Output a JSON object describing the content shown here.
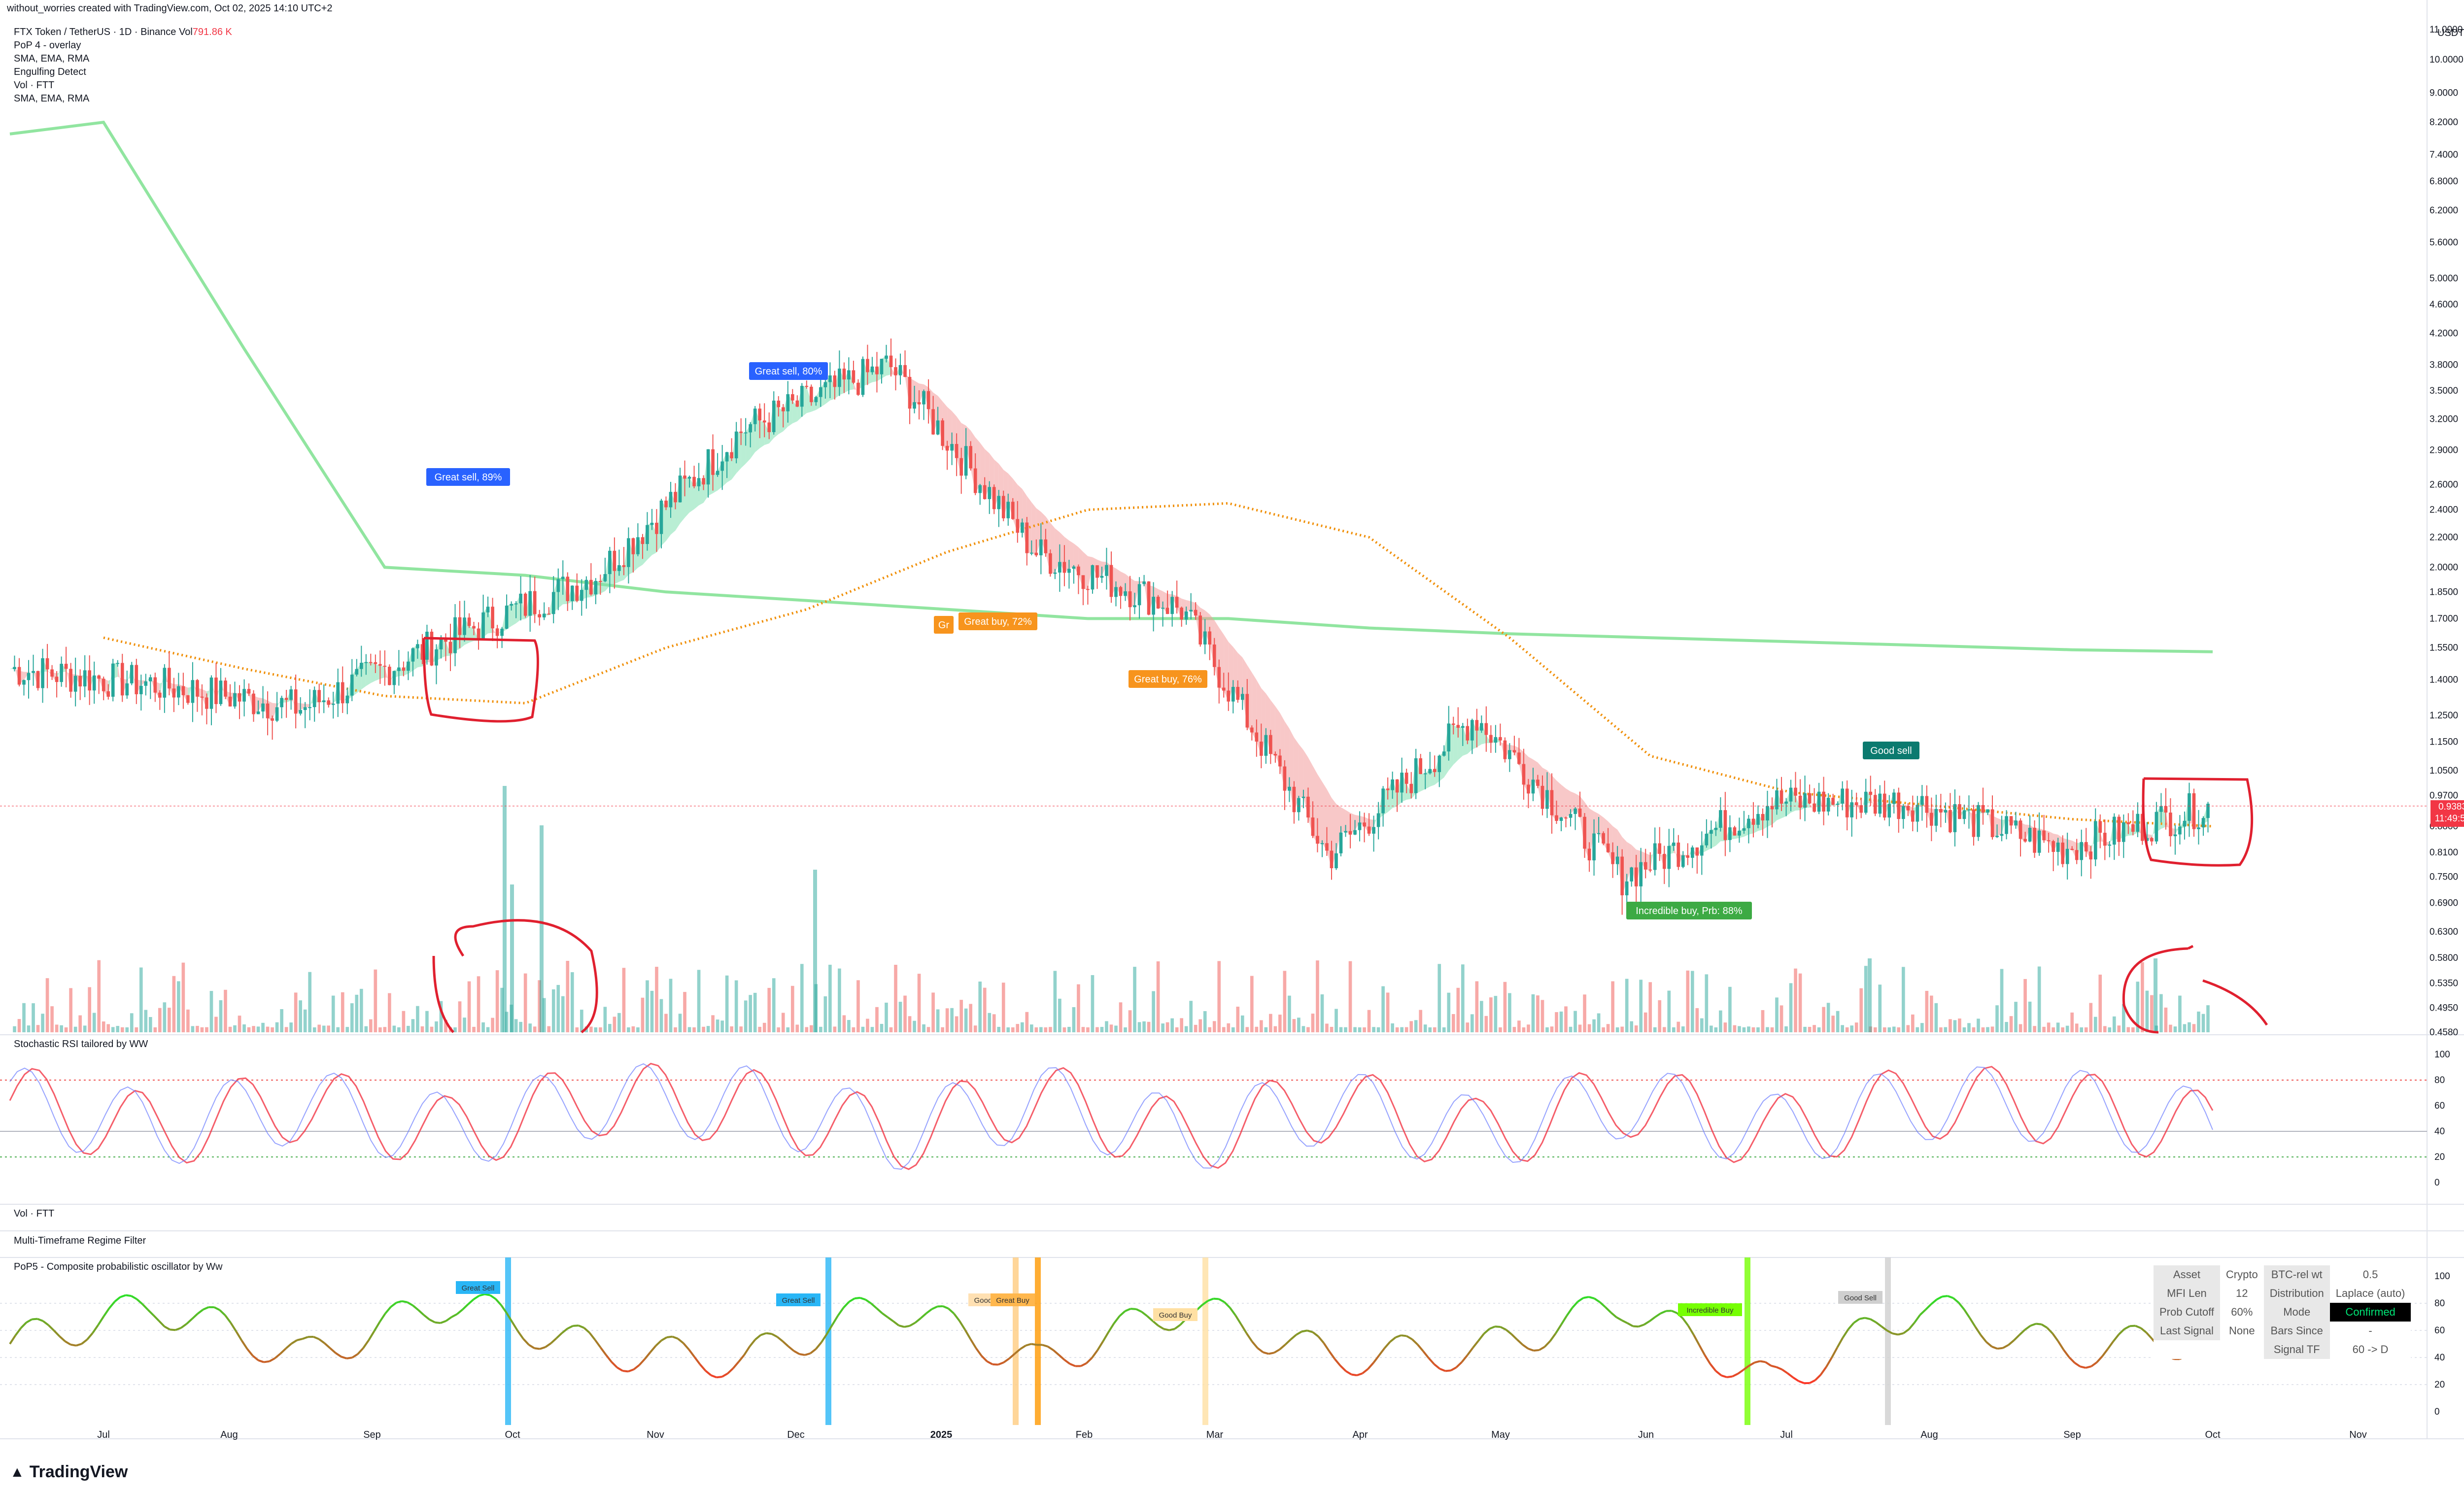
{
  "header": {
    "credit": "without_worries created with TradingView.com, Oct 02, 2025 14:10 UTC+2"
  },
  "legend": {
    "symbol": "FTX Token / TetherUS · 1D · Binance",
    "vol_prefix": "Vol",
    "vol_value": "791.86 K",
    "rows": [
      "PoP 4 - overlay",
      "SMA, EMA, RMA",
      "Engulfing Detect",
      "Vol · FTT",
      "SMA, EMA, RMA"
    ]
  },
  "price_axis": {
    "unit": "USDT",
    "ticks": [
      "11.0000",
      "10.0000",
      "9.0000",
      "8.2000",
      "7.4000",
      "6.8000",
      "6.2000",
      "5.6000",
      "5.0000",
      "4.6000",
      "4.2000",
      "3.8000",
      "3.5000",
      "3.2000",
      "2.9000",
      "2.6000",
      "2.4000",
      "2.2000",
      "2.0000",
      "1.8500",
      "1.7000",
      "1.5500",
      "1.4000",
      "1.2500",
      "1.1500",
      "1.0500",
      "0.9700",
      "0.8800",
      "0.8100",
      "0.7500",
      "0.6900",
      "0.6300",
      "0.5800",
      "0.5350",
      "0.4950",
      "0.4580"
    ],
    "last_price": "0.9383",
    "countdown": "11:49:54"
  },
  "time_axis": {
    "ticks": [
      "Jul",
      "Aug",
      "Sep",
      "Oct",
      "Nov",
      "Dec",
      "2025",
      "Feb",
      "Mar",
      "Apr",
      "May",
      "Jun",
      "Jul",
      "Aug",
      "Sep",
      "Oct",
      "Nov"
    ]
  },
  "signals": [
    {
      "text": "Great sell, 89%",
      "type": "sell"
    },
    {
      "text": "Great sell, 80%",
      "type": "sell"
    },
    {
      "text": "Great buy, 72%",
      "type": "buy"
    },
    {
      "text": "Gr",
      "type": "buy"
    },
    {
      "text": "Great buy, 76%",
      "type": "buy"
    },
    {
      "text": "Good sell",
      "type": "goodsell"
    },
    {
      "text": "Incredible buy, Prb: 88%",
      "type": "incredible"
    }
  ],
  "panes": {
    "stoch_title": "Stochastic RSI tailored by WW",
    "stoch_ticks": [
      "100",
      "80",
      "60",
      "40",
      "20",
      "0"
    ],
    "vol_title": "Vol · FTT",
    "mtf_title": "Multi-Timeframe Regime Filter",
    "pop5_title": "PoP5 - Composite probabilistic oscillator by Ww",
    "pop5_ticks": [
      "100",
      "80",
      "60",
      "40",
      "20",
      "0"
    ],
    "pop5_labels": [
      "Great Sell",
      "Great Sell",
      "Good",
      "Great Buy",
      "Good Buy",
      "Incredible Buy",
      "Good Sell"
    ]
  },
  "info_table": {
    "rows": [
      [
        "Asset",
        "Crypto",
        "BTC-rel wt",
        "0.5"
      ],
      [
        "MFI Len",
        "12",
        "Distribution",
        "Laplace (auto)"
      ],
      [
        "Prob Cutoff",
        "60%",
        "Mode",
        "Confirmed"
      ],
      [
        "Last Signal",
        "None",
        "Bars Since",
        "-"
      ],
      [
        "",
        "",
        "Signal TF",
        "60 -> D"
      ]
    ]
  },
  "branding": {
    "logo": "TradingView"
  },
  "colors": {
    "up": "#26a69a",
    "down": "#ef5350",
    "sma_long": "#7ee08f",
    "ema_dotted": "#f0900a",
    "ribbon_up": "#7fe0b0",
    "ribbon_down": "#f29a9a",
    "stoch_k": "#f23645",
    "stoch_d": "#6b7cff",
    "annotation": "#e0202f",
    "sell_label": "#2962ff",
    "buy_label": "#f7941d",
    "goodsell_label": "#0b7a6f",
    "incredible_label": "#3daa44"
  },
  "chart_data": [
    {
      "type": "candlestick",
      "title": "FTX Token / TetherUS · 1D · Binance",
      "yscale": "log",
      "ylim": [
        0.458,
        11.0
      ],
      "x": [
        "Jul",
        "Aug",
        "Sep",
        "Oct",
        "Nov",
        "Dec",
        "2025",
        "Feb",
        "Mar",
        "Apr",
        "May",
        "Jun",
        "Jul",
        "Aug",
        "Sep",
        "Oct"
      ],
      "close_approx": [
        1.45,
        1.38,
        1.28,
        1.6,
        1.95,
        3.1,
        3.8,
        2.1,
        1.75,
        0.8,
        1.25,
        0.75,
        0.95,
        0.95,
        0.82,
        0.938
      ],
      "sma_long_approx": [
        8.2,
        4.0,
        2.0,
        1.95,
        1.85,
        1.8,
        1.75,
        1.7,
        1.7,
        1.65,
        1.62,
        1.6,
        1.58,
        1.56,
        1.54,
        1.53
      ],
      "ema_dotted_approx": [
        1.6,
        1.45,
        1.33,
        1.3,
        1.55,
        1.75,
        2.1,
        2.4,
        2.45,
        2.2,
        1.6,
        1.1,
        0.98,
        0.94,
        0.9,
        0.88
      ]
    },
    {
      "type": "line",
      "title": "Stochastic RSI tailored by WW",
      "ylim": [
        0,
        100
      ],
      "series": [
        {
          "values": [
            90,
            20,
            85,
            15,
            95,
            80,
            10,
            95,
            5,
            85,
            10,
            95,
            15,
            90,
            75,
            25
          ]
        },
        {
          "values": [
            85,
            25,
            80,
            20,
            90,
            85,
            15,
            90,
            10,
            80,
            15,
            90,
            20,
            85,
            80,
            30
          ]
        }
      ]
    },
    {
      "type": "line",
      "title": "PoP5 - Composite probabilistic oscillator by Ww",
      "ylim": [
        0,
        100
      ],
      "series": [
        {
          "values": [
            50,
            78,
            40,
            82,
            45,
            38,
            80,
            35,
            78,
            40,
            45,
            80,
            20,
            78,
            45,
            55
          ]
        }
      ]
    }
  ]
}
